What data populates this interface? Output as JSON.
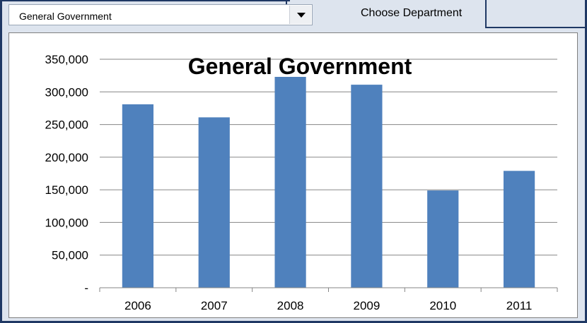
{
  "dropdown": {
    "selected": "General Government"
  },
  "choose_label": "Choose Department",
  "icons": {
    "dropdown_arrow": "chevron-down-icon"
  },
  "chart_data": {
    "type": "bar",
    "title": "General Government",
    "categories": [
      "2006",
      "2007",
      "2008",
      "2009",
      "2010",
      "2011"
    ],
    "values": [
      281000,
      261000,
      323000,
      311000,
      149000,
      179000
    ],
    "ylim": [
      0,
      350000
    ],
    "yticks": [
      0,
      50000,
      100000,
      150000,
      200000,
      250000,
      300000,
      350000
    ],
    "ytick_labels": [
      "-",
      "50,000",
      "100,000",
      "150,000",
      "200,000",
      "250,000",
      "300,000",
      "350,000"
    ],
    "grid": true,
    "bar_color": "#4f81bd",
    "xlabel": "",
    "ylabel": ""
  }
}
